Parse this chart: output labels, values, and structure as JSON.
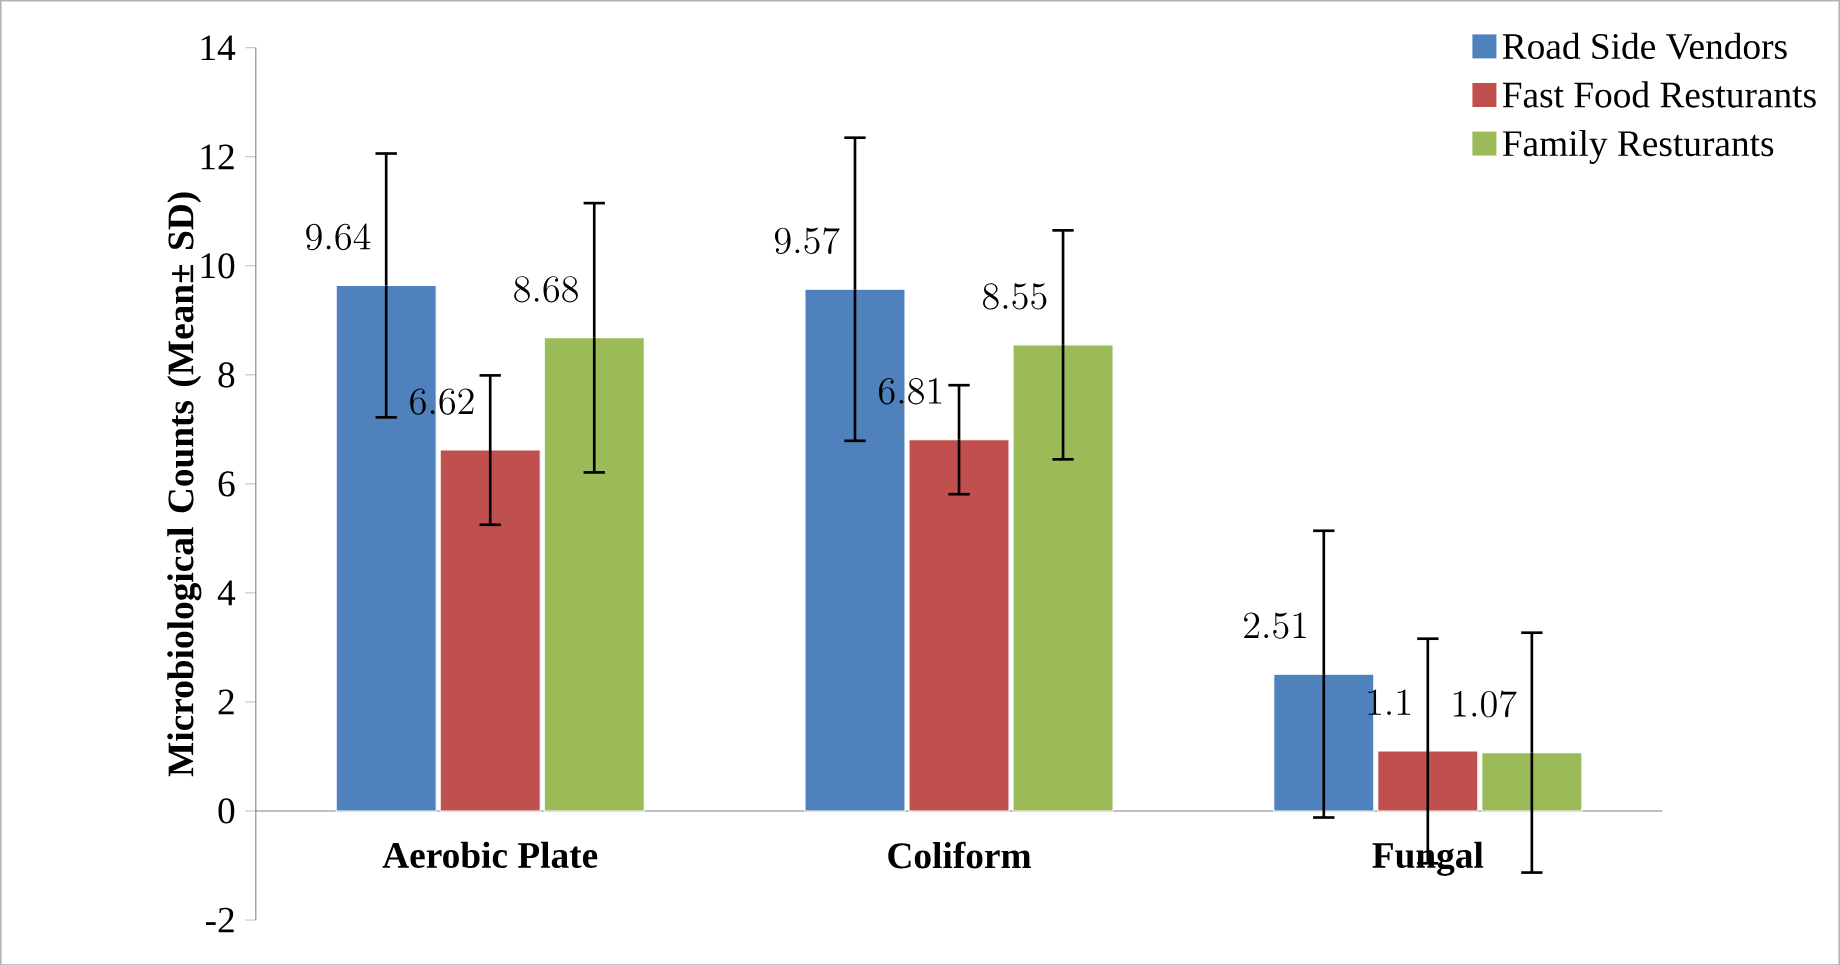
{
  "chart_data": {
    "type": "bar",
    "ylabel": "Microbiological Counts (Mean± SD)",
    "categories": [
      "Aerobic Plate",
      "Coliform",
      "Fungal"
    ],
    "series": [
      {
        "name": "Road Side Vendors",
        "color": "#4f81bd",
        "values": [
          9.64,
          9.57,
          2.51
        ],
        "errors": [
          2.42,
          2.78,
          2.63
        ]
      },
      {
        "name": "Fast Food Resturants",
        "color": "#c0504d",
        "values": [
          6.62,
          6.81,
          1.1
        ],
        "errors": [
          1.37,
          1.0,
          2.06
        ]
      },
      {
        "name": "Family Resturants",
        "color": "#9bbb59",
        "values": [
          8.68,
          8.55,
          1.07
        ],
        "errors": [
          2.47,
          2.1,
          2.2
        ]
      }
    ],
    "ylim": [
      -2,
      14
    ],
    "yticks": [
      -2,
      0,
      2,
      4,
      6,
      8,
      10,
      12,
      14
    ],
    "data_labels": true,
    "legend": "top right",
    "grid": false
  }
}
